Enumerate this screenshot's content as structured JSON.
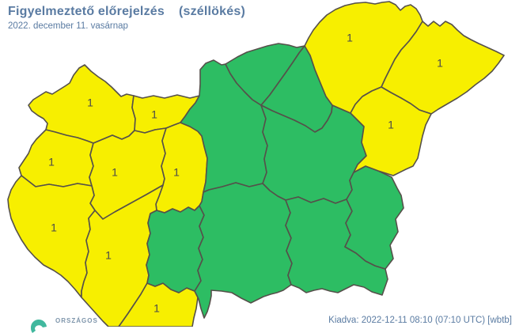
{
  "header": {
    "title": "Figyelmeztető előrejelzés",
    "hazard": "(széllökés)",
    "date": "2022. december 11. vasárnap"
  },
  "footer": {
    "issued": "Kiadva: 2022-12-11 08:10 (07:10 UTC) [wbtb]",
    "logo_text": "ORSZÁGOS"
  },
  "colors": {
    "warning_level_1": "#f7ef00",
    "no_warning": "#2dbd63",
    "county_border": "#55504a",
    "label": "#4a4a4a",
    "text": "#5a7ba2",
    "logo_teal": "#41b89e"
  },
  "map": {
    "counties": [
      {
        "id": "gyor-moson-sopron",
        "name": "Győr-Moson-Sopron",
        "warning_level": 1,
        "label": "1"
      },
      {
        "id": "komarom-esztergom",
        "name": "Komárom-Esztergom",
        "warning_level": 1,
        "label": "1"
      },
      {
        "id": "vas",
        "name": "Vas",
        "warning_level": 1,
        "label": "1"
      },
      {
        "id": "veszprem",
        "name": "Veszprém",
        "warning_level": 1,
        "label": "1"
      },
      {
        "id": "fejer",
        "name": "Fejér",
        "warning_level": 1,
        "label": "1"
      },
      {
        "id": "zala",
        "name": "Zala",
        "warning_level": 1,
        "label": "1"
      },
      {
        "id": "somogy",
        "name": "Somogy",
        "warning_level": 1,
        "label": "1"
      },
      {
        "id": "baranya",
        "name": "Baranya",
        "warning_level": 1,
        "label": "1"
      },
      {
        "id": "tolna",
        "name": "Tolna",
        "warning_level": 0,
        "label": ""
      },
      {
        "id": "pest",
        "name": "Pest",
        "warning_level": 0,
        "label": ""
      },
      {
        "id": "nograd",
        "name": "Nógrád",
        "warning_level": 0,
        "label": ""
      },
      {
        "id": "heves",
        "name": "Heves",
        "warning_level": 0,
        "label": ""
      },
      {
        "id": "jasz-nagykun-szolnok",
        "name": "Jász-Nagykun-Szolnok",
        "warning_level": 0,
        "label": ""
      },
      {
        "id": "bacs-kiskun",
        "name": "Bács-Kiskun",
        "warning_level": 0,
        "label": ""
      },
      {
        "id": "csongrad-csanad",
        "name": "Csongrád-Csanád",
        "warning_level": 0,
        "label": ""
      },
      {
        "id": "bekes",
        "name": "Békés",
        "warning_level": 0,
        "label": ""
      },
      {
        "id": "borsod-abauj-zemplen",
        "name": "Borsod-Abaúj-Zemplén",
        "warning_level": 1,
        "label": "1"
      },
      {
        "id": "szabolcs-szatmar-bereg",
        "name": "Szabolcs-Szatmár-Bereg",
        "warning_level": 1,
        "label": "1"
      },
      {
        "id": "hajdu-bihar",
        "name": "Hajdú-Bihar",
        "warning_level": 1,
        "label": "1"
      }
    ]
  }
}
